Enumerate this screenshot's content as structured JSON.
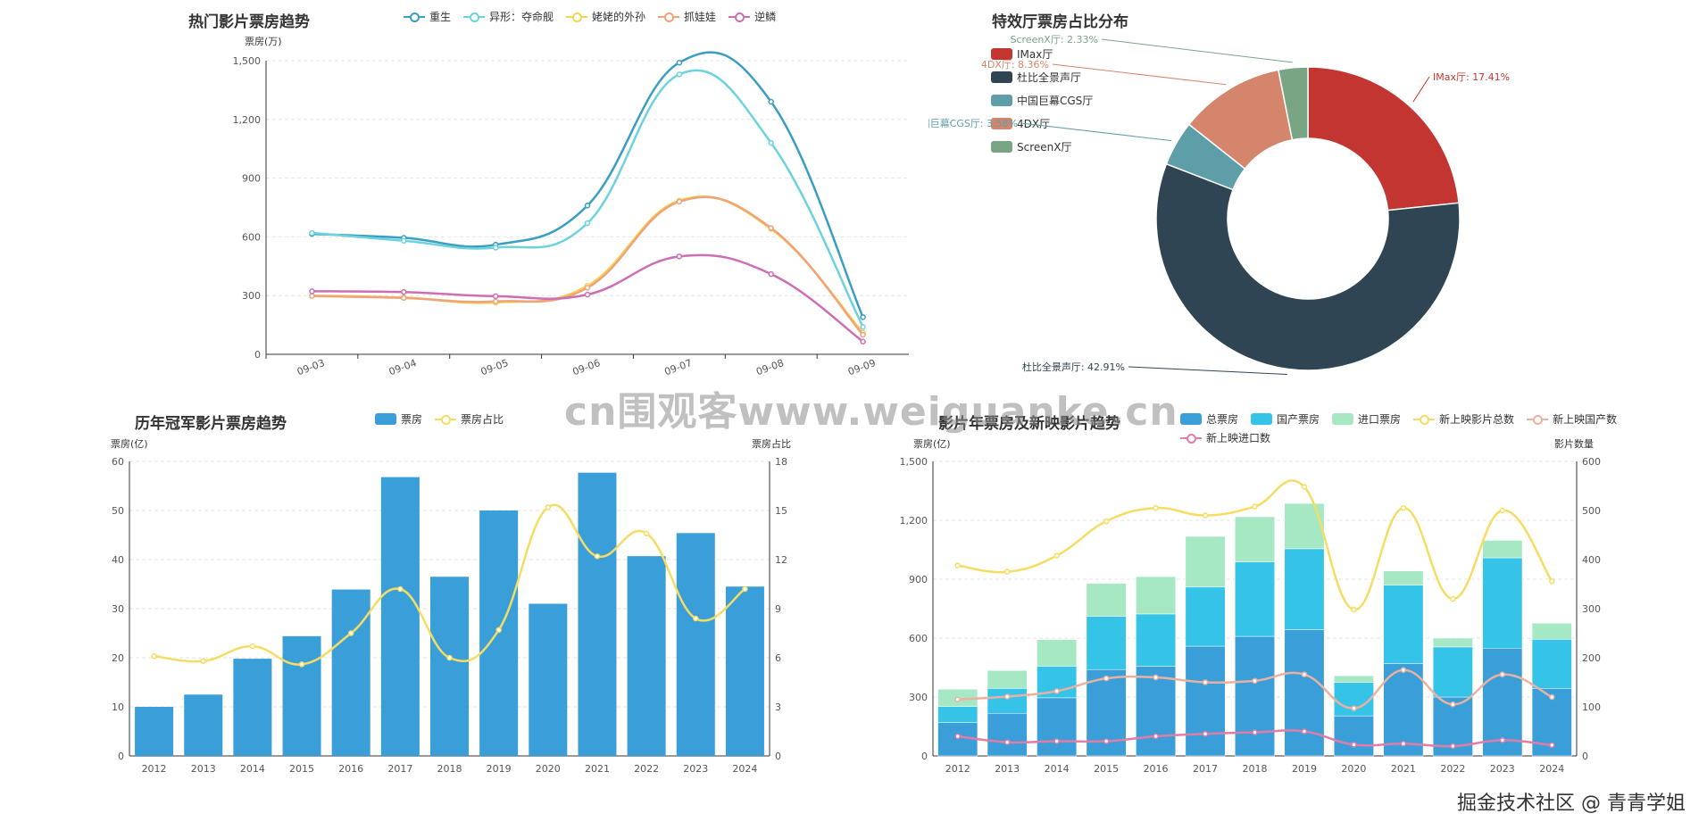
{
  "panel1": {
    "title": "热门影片票房趋势",
    "y_axis_name": "票房(万)"
  },
  "panel2": {
    "title": "特效厅票房占比分布"
  },
  "panel3": {
    "title": "历年冠军影片票房趋势",
    "y_axis_name": "票房(亿)",
    "y2_axis_name": "票房占比"
  },
  "panel4": {
    "title": "影片年票房及新映影片趋势",
    "y_axis_name": "票房(亿)",
    "y2_axis_name": "影片数量"
  },
  "overlay": {
    "watermark": "cn围观客www.weiguanke.cn",
    "signature": "掘金技术社区 @ 青青学姐"
  },
  "chart_data": [
    {
      "type": "line",
      "id": "trend",
      "title": "热门影片票房趋势",
      "ylabel": "票房(万)",
      "x": [
        "09-03",
        "09-04",
        "09-05",
        "09-06",
        "09-07",
        "09-08",
        "09-09"
      ],
      "ylim": [
        0,
        1500
      ],
      "yticks": [
        0,
        300,
        600,
        900,
        1200,
        1500
      ],
      "smooth": true,
      "series": [
        {
          "name": "重生",
          "color": "#3b9dc2",
          "values": [
            615,
            595,
            560,
            760,
            1490,
            1290,
            190
          ]
        },
        {
          "name": "异形：夺命舰",
          "color": "#6cd3dd",
          "values": [
            620,
            580,
            545,
            670,
            1430,
            1080,
            140
          ]
        },
        {
          "name": "姥姥的外孙",
          "color": "#f4d452",
          "values": [
            300,
            290,
            265,
            350,
            785,
            640,
            110
          ]
        },
        {
          "name": "抓娃娃",
          "color": "#f0a279",
          "values": [
            298,
            288,
            270,
            340,
            780,
            645,
            100
          ]
        },
        {
          "name": "逆鳞",
          "color": "#cd6eb3",
          "values": [
            322,
            318,
            297,
            305,
            500,
            410,
            65
          ]
        }
      ]
    },
    {
      "type": "pie",
      "id": "halls",
      "title": "特效厅票房占比分布",
      "donut": true,
      "slices": [
        {
          "name": "IMax厅",
          "value": 17.41,
          "label": "IMax厅: 17.41%",
          "color": "#c23531"
        },
        {
          "name": "杜比全景声厅",
          "value": 42.91,
          "label": "杜比全景声厅: 42.91%",
          "color": "#2f4554"
        },
        {
          "name": "中国巨幕CGS厅",
          "value": 3.58,
          "label": "中国巨幕CGS厅: 3.58%",
          "color": "#5e9ea8"
        },
        {
          "name": "4DX厅",
          "value": 8.36,
          "label": "4DX厅: 8.36%",
          "color": "#d4856b"
        },
        {
          "name": "ScreenX厅",
          "value": 2.33,
          "label": "ScreenX厅: 2.33%",
          "color": "#79a585"
        }
      ]
    },
    {
      "type": "bar",
      "id": "champions",
      "title": "历年冠军影片票房趋势",
      "categories": [
        "2012",
        "2013",
        "2014",
        "2015",
        "2016",
        "2017",
        "2018",
        "2019",
        "2020",
        "2021",
        "2022",
        "2023",
        "2024"
      ],
      "ylabel": "票房(亿)",
      "y2label": "票房占比",
      "ylim": [
        0,
        60
      ],
      "yticks": [
        0,
        10,
        20,
        30,
        40,
        50,
        60
      ],
      "y2lim": [
        0,
        18
      ],
      "y2ticks": [
        0,
        3,
        6,
        9,
        12,
        15,
        18
      ],
      "series": [
        {
          "name": "票房",
          "kind": "bar",
          "axis": "left",
          "color": "#3a9fd8",
          "values": [
            10,
            12.5,
            19.8,
            24.4,
            33.9,
            56.8,
            36.5,
            50,
            31,
            57.7,
            40.7,
            45.4,
            34.5
          ]
        },
        {
          "name": "票房占比",
          "kind": "line",
          "axis": "right",
          "color": "#f6dc63",
          "values": [
            6.1,
            5.8,
            6.7,
            5.6,
            7.5,
            10.2,
            6,
            7.7,
            15.2,
            12.2,
            13.6,
            8.4,
            10.2
          ]
        }
      ]
    },
    {
      "type": "bar",
      "id": "yearly",
      "title": "影片年票房及新映影片趋势",
      "stacked": true,
      "categories": [
        "2012",
        "2013",
        "2014",
        "2015",
        "2016",
        "2017",
        "2018",
        "2019",
        "2020",
        "2021",
        "2022",
        "2023",
        "2024"
      ],
      "ylabel": "票房(亿)",
      "y2label": "影片数量",
      "ylim": [
        0,
        1500
      ],
      "yticks": [
        0,
        300,
        600,
        900,
        1200,
        1500
      ],
      "y2lim": [
        0,
        600
      ],
      "y2ticks": [
        0,
        100,
        200,
        300,
        400,
        500,
        600
      ],
      "series": [
        {
          "name": "总票房",
          "kind": "bar",
          "axis": "left",
          "color": "#3a9fd8",
          "values": [
            170,
            217,
            296,
            440,
            457,
            559,
            609,
            643,
            204,
            471,
            300,
            549,
            344
          ]
        },
        {
          "name": "国产票房",
          "kind": "bar",
          "axis": "left",
          "color": "#36c3e8",
          "values": [
            82,
            127,
            161,
            271,
            266,
            301,
            379,
            412,
            170,
            399,
            255,
            460,
            250
          ]
        },
        {
          "name": "进口票房",
          "kind": "bar",
          "axis": "left",
          "color": "#a6e8c4",
          "values": [
            88,
            91,
            135,
            168,
            190,
            258,
            230,
            231,
            34,
            72,
            45,
            89,
            82
          ]
        },
        {
          "name": "新上映影片总数",
          "kind": "line",
          "axis": "right",
          "color": "#f6dc63",
          "values": [
            388,
            375,
            408,
            478,
            505,
            490,
            508,
            548,
            298,
            505,
            320,
            500,
            356
          ]
        },
        {
          "name": "新上映国产数",
          "kind": "line",
          "axis": "right",
          "color": "#ebb1a0",
          "values": [
            115,
            121,
            132,
            158,
            160,
            150,
            153,
            166,
            97,
            175,
            105,
            166,
            120
          ]
        },
        {
          "name": "新上映进口数",
          "kind": "line",
          "axis": "right",
          "color": "#e27ca6",
          "values": [
            40,
            28,
            30,
            30,
            40,
            45,
            48,
            50,
            23,
            25,
            20,
            32,
            22
          ]
        }
      ]
    }
  ]
}
